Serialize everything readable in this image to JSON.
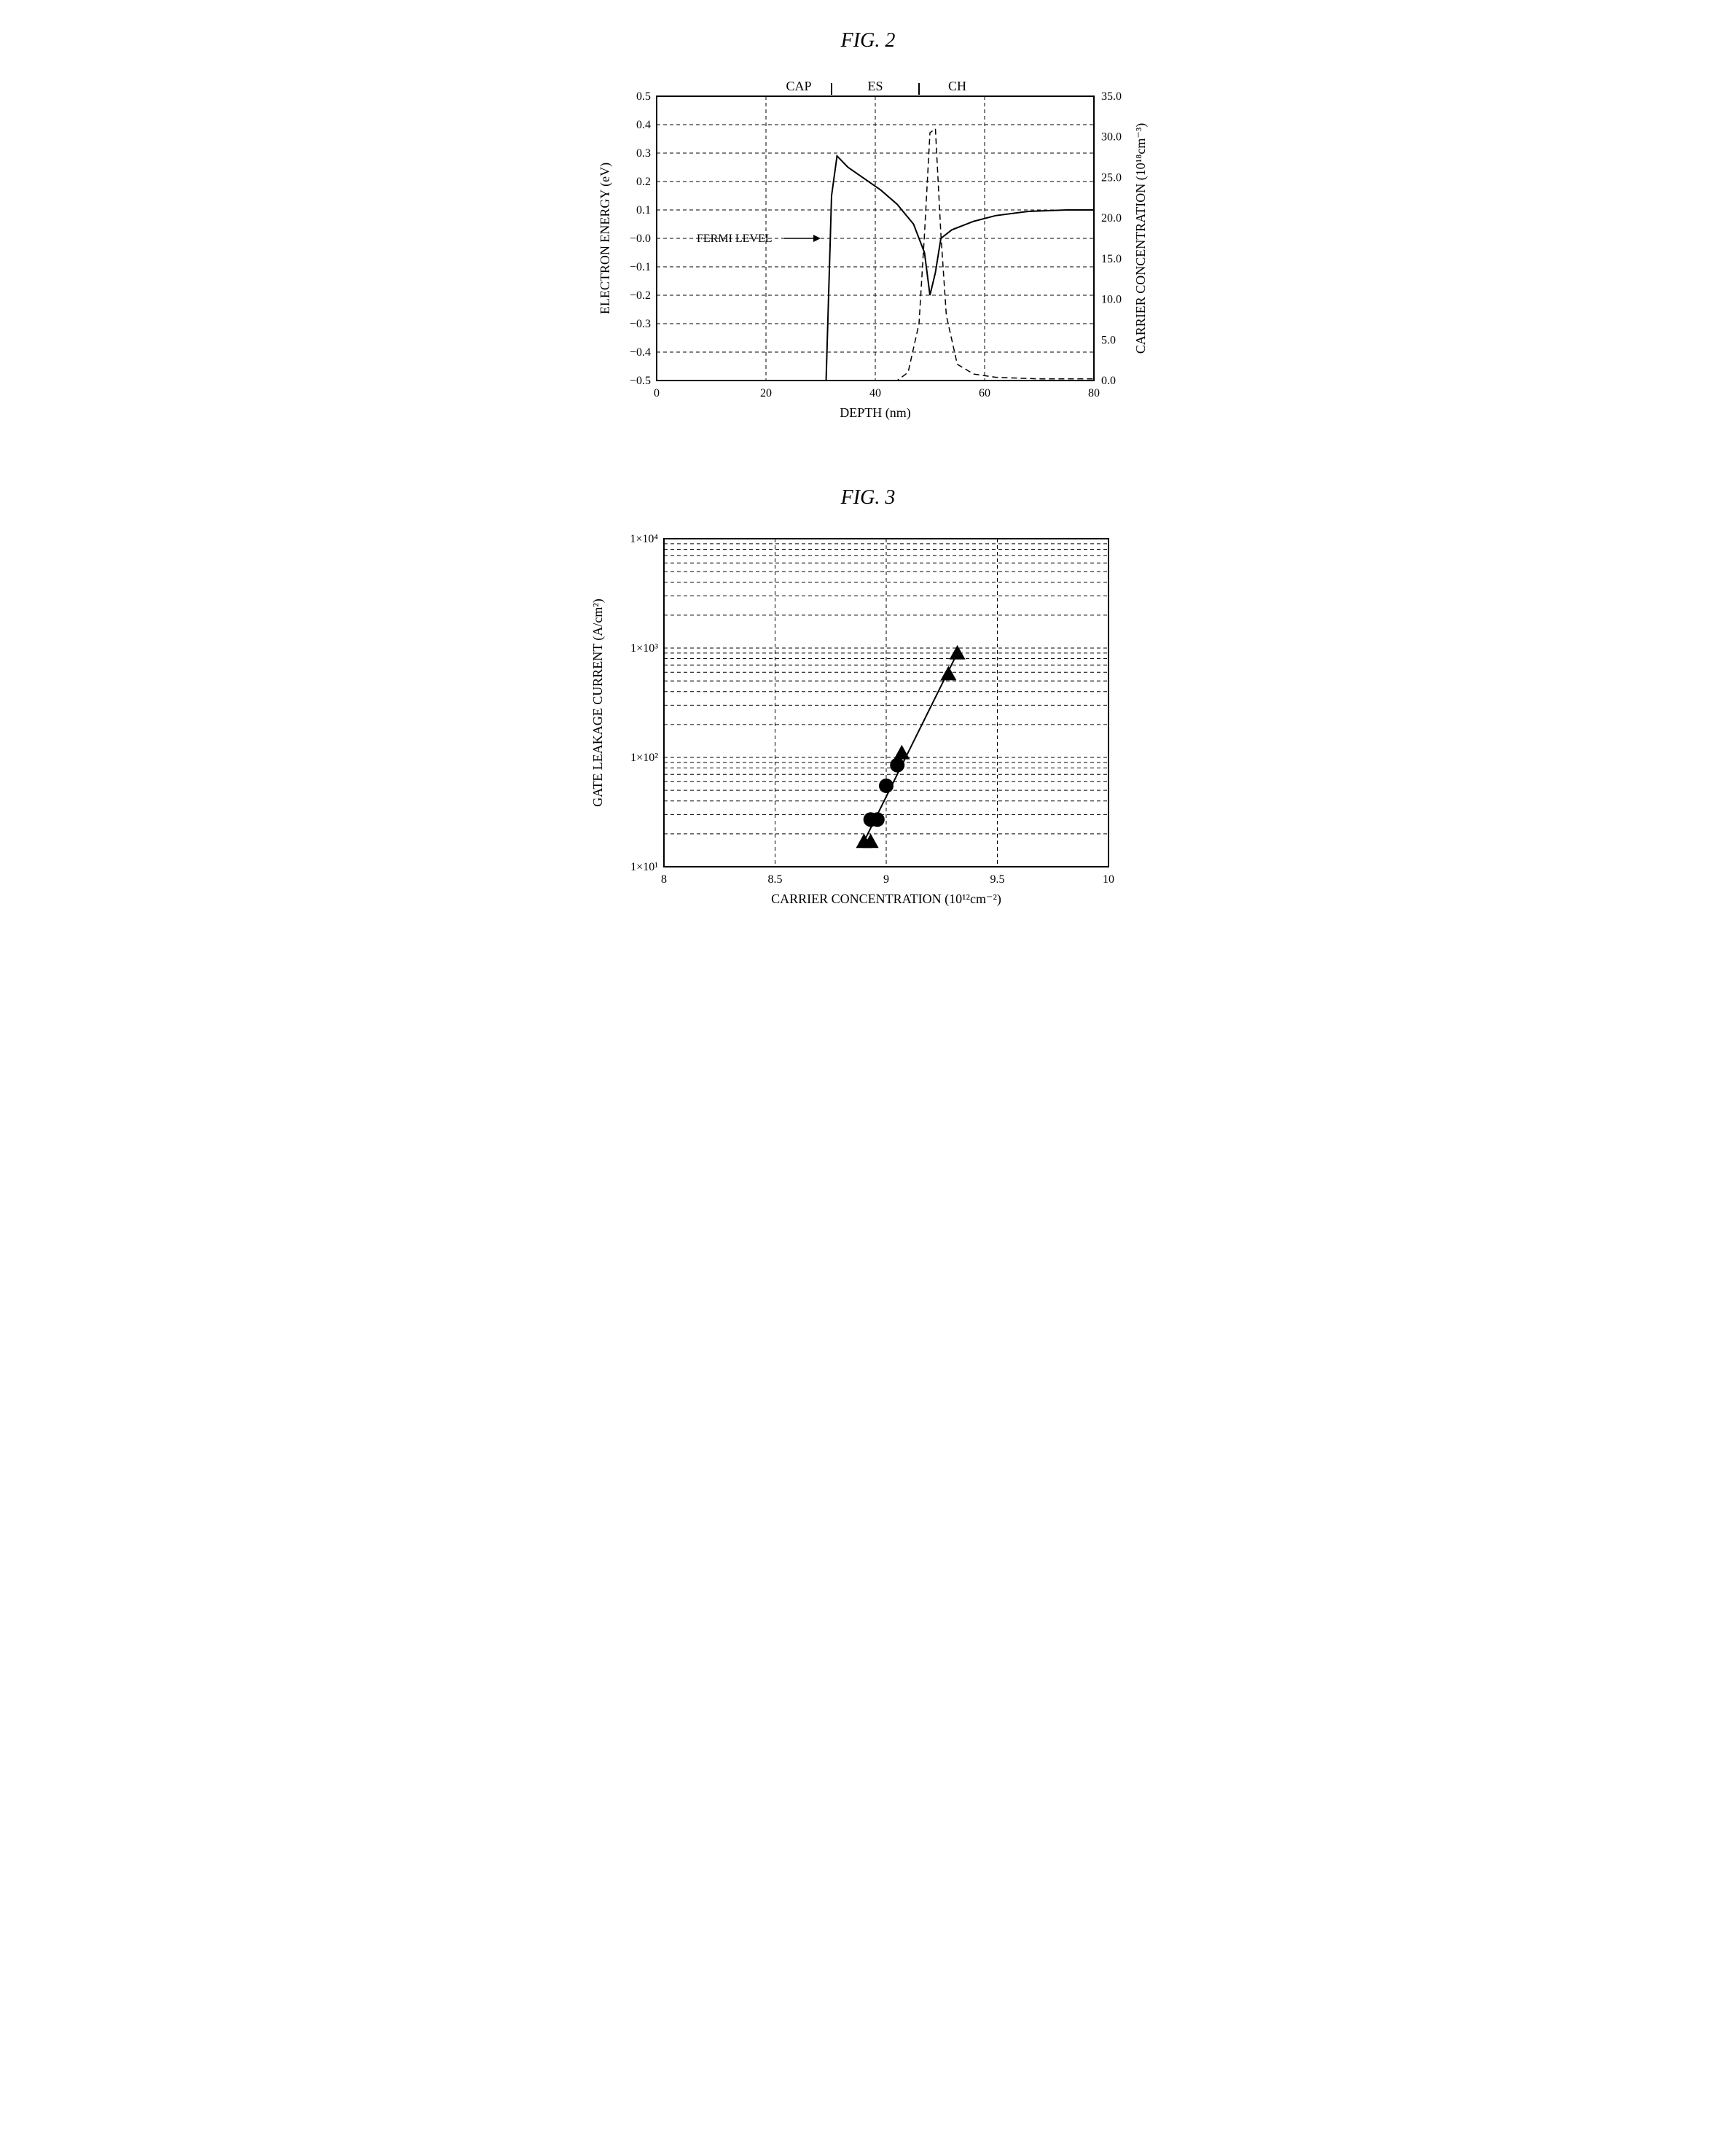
{
  "fig2": {
    "title": "FIG. 2",
    "type": "line",
    "xlabel": "DEPTH (nm)",
    "ylabel_left": "ELECTRON ENERGY (eV)",
    "ylabel_right": "CARRIER CONCENTRATION (10¹⁸cm⁻³)",
    "top_labels": [
      {
        "text": "CAP",
        "x": 26
      },
      {
        "text": "ES",
        "x": 40
      },
      {
        "text": "CH",
        "x": 55
      }
    ],
    "top_separators_x": [
      32,
      48
    ],
    "xlim": [
      0,
      80
    ],
    "xtick_step": 20,
    "ylim_left": [
      -0.5,
      0.5
    ],
    "ytick_step_left": 0.1,
    "ylim_right": [
      0.0,
      35.0
    ],
    "ytick_step_right": 5.0,
    "annotation": {
      "text": "FERMI LEVEL",
      "arrow_from": [
        8,
        0
      ],
      "arrow_to": [
        30,
        0
      ]
    },
    "energy_line": {
      "points": [
        [
          0,
          -0.5
        ],
        [
          31,
          -0.5
        ],
        [
          32,
          0.15
        ],
        [
          33,
          0.29
        ],
        [
          35,
          0.25
        ],
        [
          38,
          0.21
        ],
        [
          41,
          0.17
        ],
        [
          44,
          0.12
        ],
        [
          47,
          0.05
        ],
        [
          49,
          -0.05
        ],
        [
          50,
          -0.2
        ],
        [
          51,
          -0.12
        ],
        [
          52,
          0.0
        ],
        [
          54,
          0.03
        ],
        [
          58,
          0.06
        ],
        [
          62,
          0.08
        ],
        [
          68,
          0.095
        ],
        [
          75,
          0.1
        ],
        [
          80,
          0.1
        ]
      ],
      "style": "solid",
      "width": 2,
      "color": "#000000"
    },
    "carrier_line": {
      "points": [
        [
          0,
          0
        ],
        [
          44,
          0
        ],
        [
          46,
          1
        ],
        [
          48,
          7
        ],
        [
          49,
          18
        ],
        [
          50,
          30.5
        ],
        [
          51,
          31
        ],
        [
          52,
          18
        ],
        [
          53,
          8
        ],
        [
          55,
          2
        ],
        [
          58,
          0.8
        ],
        [
          62,
          0.4
        ],
        [
          70,
          0.2
        ],
        [
          80,
          0.2
        ]
      ],
      "style": "dashed",
      "width": 1.5,
      "color": "#000000"
    },
    "background_color": "#ffffff",
    "grid_color": "#000000",
    "tick_fontsize": 16,
    "label_fontsize": 18
  },
  "fig3": {
    "title": "FIG. 3",
    "type": "scatter-log",
    "xlabel": "CARRIER CONCENTRATION (10¹²cm⁻²)",
    "ylabel": "GATE LEAKAGE CURRENT (A/cm²)",
    "xlim": [
      8,
      10
    ],
    "xtick_step": 0.5,
    "ylim_log": [
      10,
      10000
    ],
    "ytick_labels": [
      "1×10¹",
      "1×10²",
      "1×10³",
      "1×10⁴"
    ],
    "fit_line": {
      "points": [
        [
          8.9,
          17
        ],
        [
          9.32,
          900
        ]
      ],
      "color": "#000000",
      "width": 2
    },
    "circles": {
      "points": [
        [
          8.93,
          27
        ],
        [
          8.96,
          27
        ],
        [
          9.0,
          55
        ],
        [
          9.05,
          85
        ]
      ],
      "color": "#000000",
      "size": 10
    },
    "triangles": {
      "points": [
        [
          8.9,
          17
        ],
        [
          8.93,
          17
        ],
        [
          9.07,
          110
        ],
        [
          9.28,
          580
        ],
        [
          9.32,
          900
        ]
      ],
      "color": "#000000",
      "size": 11
    },
    "background_color": "#ffffff",
    "grid_color": "#000000",
    "tick_fontsize": 16,
    "label_fontsize": 18
  }
}
